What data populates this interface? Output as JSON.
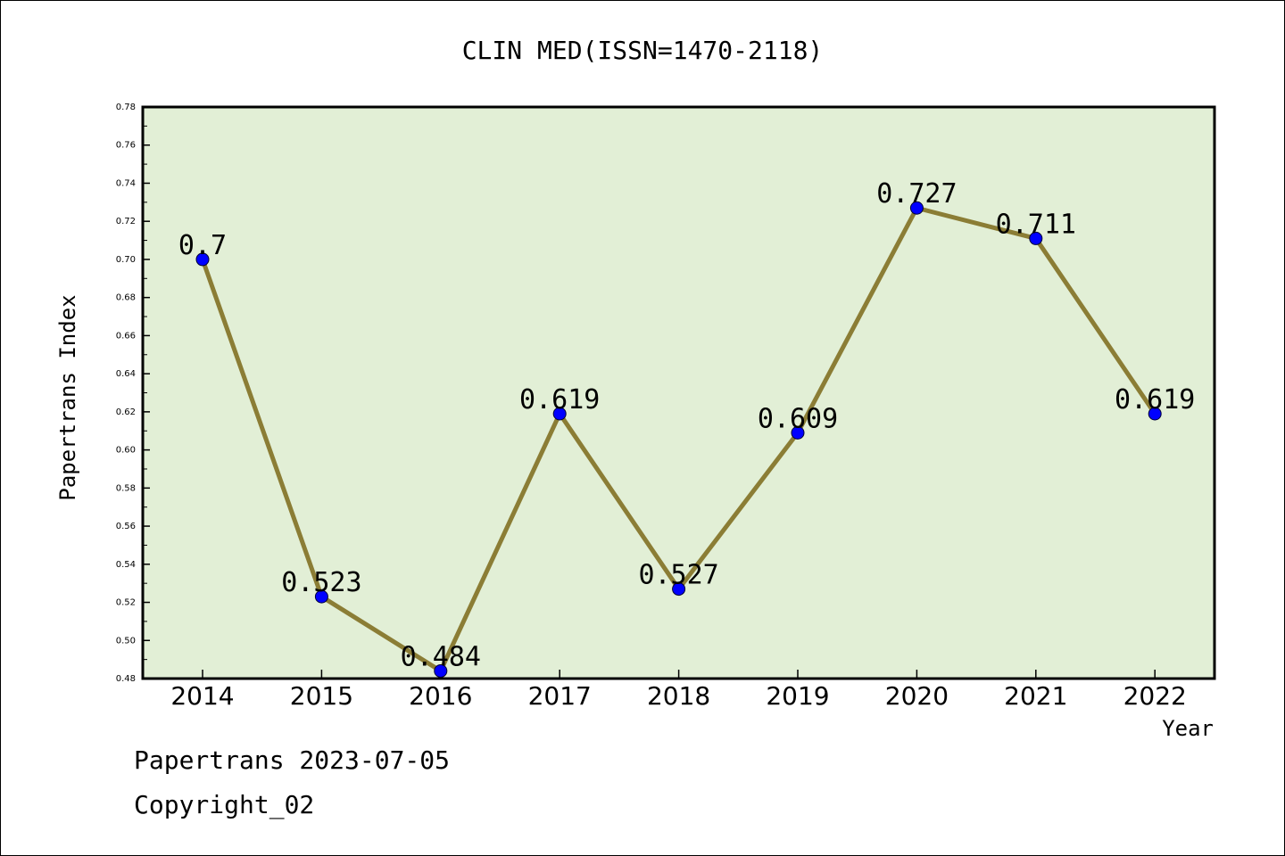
{
  "chart_data": {
    "type": "line",
    "title": "CLIN MED(ISSN=1470-2118)",
    "xlabel": "Year",
    "ylabel": "Papertrans Index",
    "categories": [
      "2014",
      "2015",
      "2016",
      "2017",
      "2018",
      "2019",
      "2020",
      "2021",
      "2022"
    ],
    "values": [
      0.7,
      0.523,
      0.484,
      0.619,
      0.527,
      0.609,
      0.727,
      0.711,
      0.619
    ],
    "data_labels": [
      "0.7",
      "0.523",
      "0.484",
      "0.619",
      "0.527",
      "0.609",
      "0.727",
      "0.711",
      "0.619"
    ],
    "ylim": [
      0.48,
      0.78
    ],
    "yticks": [
      "0.48",
      "0.50",
      "0.52",
      "0.54",
      "0.56",
      "0.58",
      "0.60",
      "0.62",
      "0.64",
      "0.66",
      "0.68",
      "0.70",
      "0.72",
      "0.74",
      "0.76",
      "0.78"
    ],
    "grid": false,
    "legend": "none",
    "colors": {
      "plot_background": "#e2efd6",
      "line": "#8b7d35",
      "marker": "#0000ff"
    }
  },
  "footer": {
    "line1": "Papertrans 2023-07-05",
    "line2": "Copyright_02"
  }
}
